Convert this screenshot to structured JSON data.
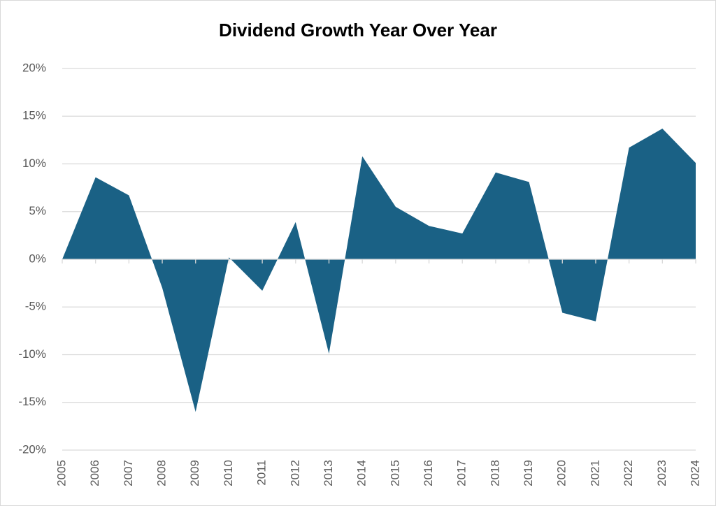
{
  "chart_data": {
    "type": "area",
    "title": "Dividend Growth Year Over Year",
    "categories": [
      "2005",
      "2006",
      "2007",
      "2008",
      "2009",
      "2010",
      "2011",
      "2012",
      "2013",
      "2014",
      "2015",
      "2016",
      "2017",
      "2018",
      "2019",
      "2020",
      "2021",
      "2022",
      "2023",
      "2024"
    ],
    "values": [
      0,
      8.6,
      6.7,
      -3,
      -16,
      0.2,
      -3.3,
      3.9,
      -9.9,
      10.8,
      5.5,
      3.5,
      2.7,
      9.1,
      8.1,
      -5.6,
      -6.5,
      11.7,
      13.7,
      10.1
    ],
    "color": "#1a6185",
    "ylim": [
      -20,
      20
    ],
    "yticks": [
      {
        "value": -20,
        "label": "-20%"
      },
      {
        "value": -15,
        "label": "-15%"
      },
      {
        "value": -10,
        "label": "-10%"
      },
      {
        "value": -5,
        "label": "-5%"
      },
      {
        "value": 0,
        "label": "0%"
      },
      {
        "value": 5,
        "label": "5%"
      },
      {
        "value": 10,
        "label": "10%"
      },
      {
        "value": 15,
        "label": "15%"
      },
      {
        "value": 20,
        "label": "20%"
      }
    ],
    "grid": true
  }
}
